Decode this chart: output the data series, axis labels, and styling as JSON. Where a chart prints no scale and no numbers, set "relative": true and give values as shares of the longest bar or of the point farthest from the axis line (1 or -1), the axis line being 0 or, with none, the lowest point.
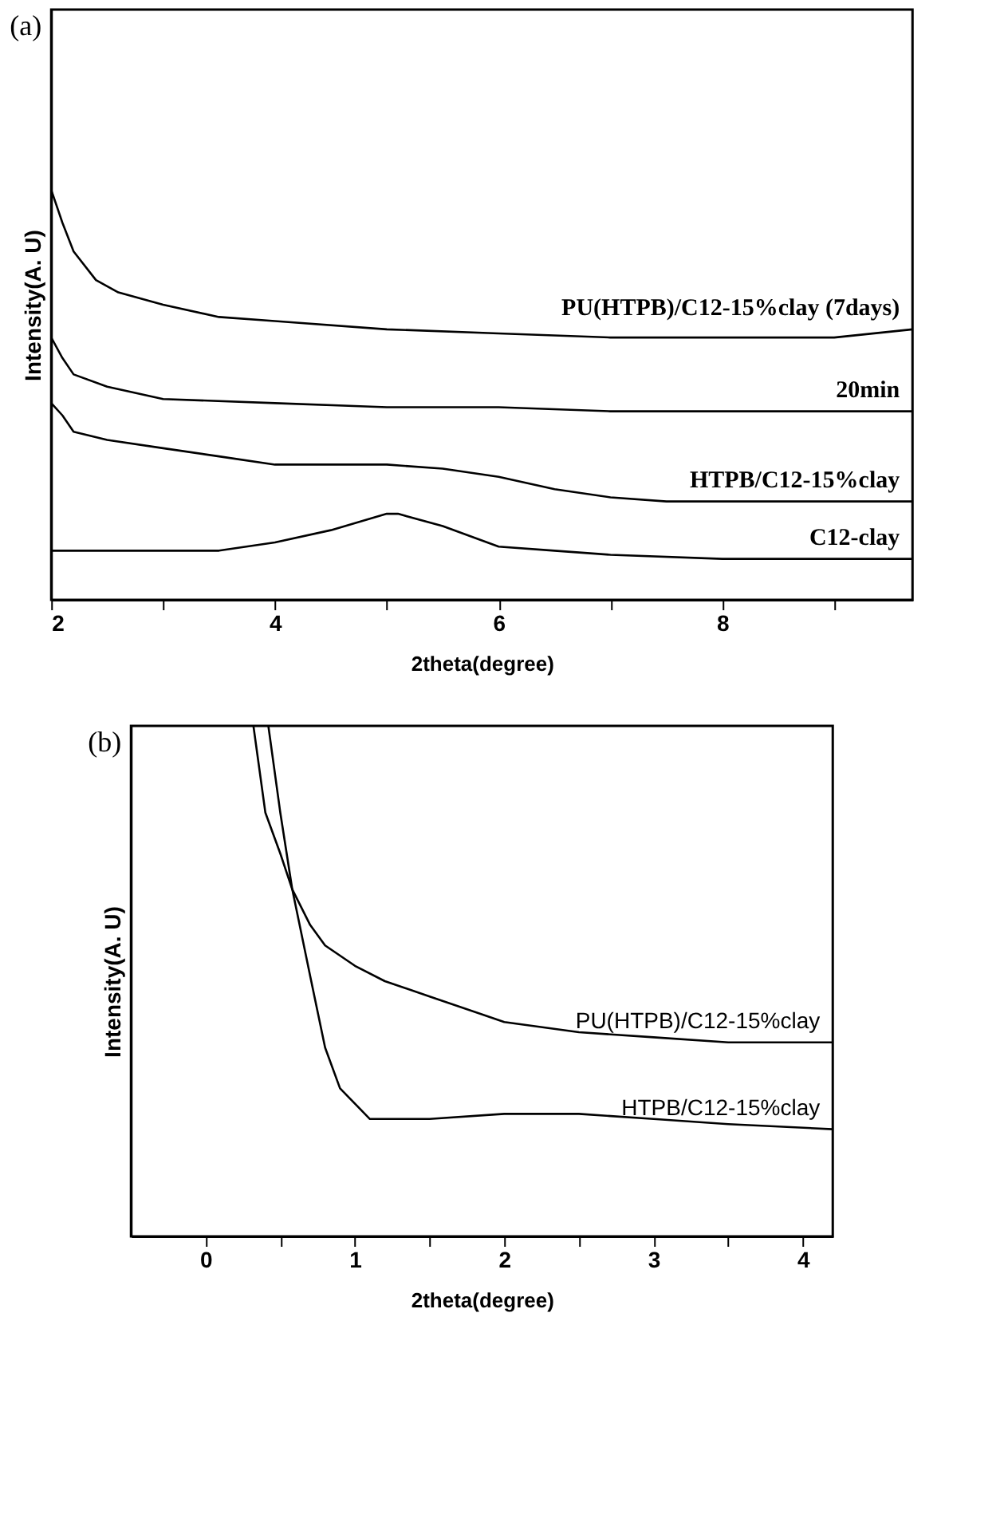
{
  "chart_data": [
    {
      "type": "line",
      "title": "(a)",
      "xlabel": "2theta(degree)",
      "ylabel": "Intensity(A. U)",
      "relative": true,
      "xlim": [
        2,
        9.7
      ],
      "xticks": [
        2,
        {
          "value": 3,
          "label": null
        },
        4,
        {
          "value": 5,
          "label": null
        },
        6,
        {
          "value": 7,
          "label": null
        },
        8,
        {
          "value": 9,
          "label": null
        }
      ],
      "grid": false,
      "legend": false,
      "marker": "none",
      "line_style": "solid",
      "series": [
        {
          "name": "PU(HTPB)/C12-15%clay (7days)",
          "color": "#000000",
          "x": [
            2,
            2.1,
            2.2,
            2.4,
            2.6,
            3,
            3.5,
            4,
            5,
            6,
            7,
            8,
            9,
            9.7
          ],
          "values": [
            1.0,
            0.92,
            0.85,
            0.78,
            0.75,
            0.72,
            0.69,
            0.68,
            0.66,
            0.65,
            0.64,
            0.64,
            0.64,
            0.66
          ]
        },
        {
          "name": "20min",
          "color": "#000000",
          "x": [
            2,
            2.1,
            2.2,
            2.5,
            3,
            4,
            5,
            6,
            7,
            8,
            9.7
          ],
          "values": [
            0.64,
            0.59,
            0.55,
            0.52,
            0.49,
            0.48,
            0.47,
            0.47,
            0.46,
            0.46,
            0.46
          ]
        },
        {
          "name": "HTPB/C12-15%clay",
          "color": "#000000",
          "x": [
            2,
            2.1,
            2.2,
            2.5,
            3,
            3.5,
            4,
            4.5,
            5,
            5.5,
            6,
            6.5,
            7,
            7.5,
            8,
            9,
            9.7
          ],
          "values": [
            0.48,
            0.45,
            0.41,
            0.39,
            0.37,
            0.35,
            0.33,
            0.33,
            0.33,
            0.32,
            0.3,
            0.27,
            0.25,
            0.24,
            0.24,
            0.24,
            0.24
          ]
        },
        {
          "name": "C12-clay",
          "color": "#000000",
          "x": [
            2,
            3,
            3.5,
            4,
            4.5,
            5,
            5.1,
            5.5,
            6,
            6.5,
            7,
            8,
            9.7
          ],
          "values": [
            0.12,
            0.12,
            0.12,
            0.14,
            0.17,
            0.21,
            0.21,
            0.18,
            0.13,
            0.12,
            0.11,
            0.1,
            0.1
          ]
        }
      ]
    },
    {
      "type": "line",
      "title": "(b)",
      "xlabel": "2theta(degree)",
      "ylabel": "Intensity(A. U)",
      "relative": true,
      "xlim": [
        -0.5,
        4.2
      ],
      "xticks": [
        0,
        {
          "value": 0.5,
          "label": null
        },
        1,
        {
          "value": 1.5,
          "label": null
        },
        2,
        {
          "value": 2.5,
          "label": null
        },
        3,
        {
          "value": 3.5,
          "label": null
        },
        4
      ],
      "grid": false,
      "legend": false,
      "marker": "none",
      "line_style": "solid",
      "series": [
        {
          "name": "PU(HTPB)/C12-15%clay",
          "color": "#000000",
          "x": [
            0.32,
            0.4,
            0.5,
            0.58,
            0.7,
            0.8,
            1,
            1.2,
            1.5,
            2,
            2.5,
            3,
            3.5,
            4.2
          ],
          "values": [
            1.0,
            0.83,
            0.75,
            0.68,
            0.61,
            0.57,
            0.53,
            0.5,
            0.47,
            0.42,
            0.4,
            0.39,
            0.38,
            0.38
          ]
        },
        {
          "name": "HTPB/C12-15%clay",
          "color": "#000000",
          "x": [
            0.42,
            0.5,
            0.58,
            0.7,
            0.8,
            0.9,
            1,
            1.1,
            1.2,
            1.5,
            2,
            2.5,
            3,
            3.5,
            4.2
          ],
          "values": [
            1.0,
            0.83,
            0.68,
            0.51,
            0.37,
            0.29,
            0.26,
            0.23,
            0.23,
            0.23,
            0.24,
            0.24,
            0.23,
            0.22,
            0.21
          ]
        }
      ]
    }
  ]
}
